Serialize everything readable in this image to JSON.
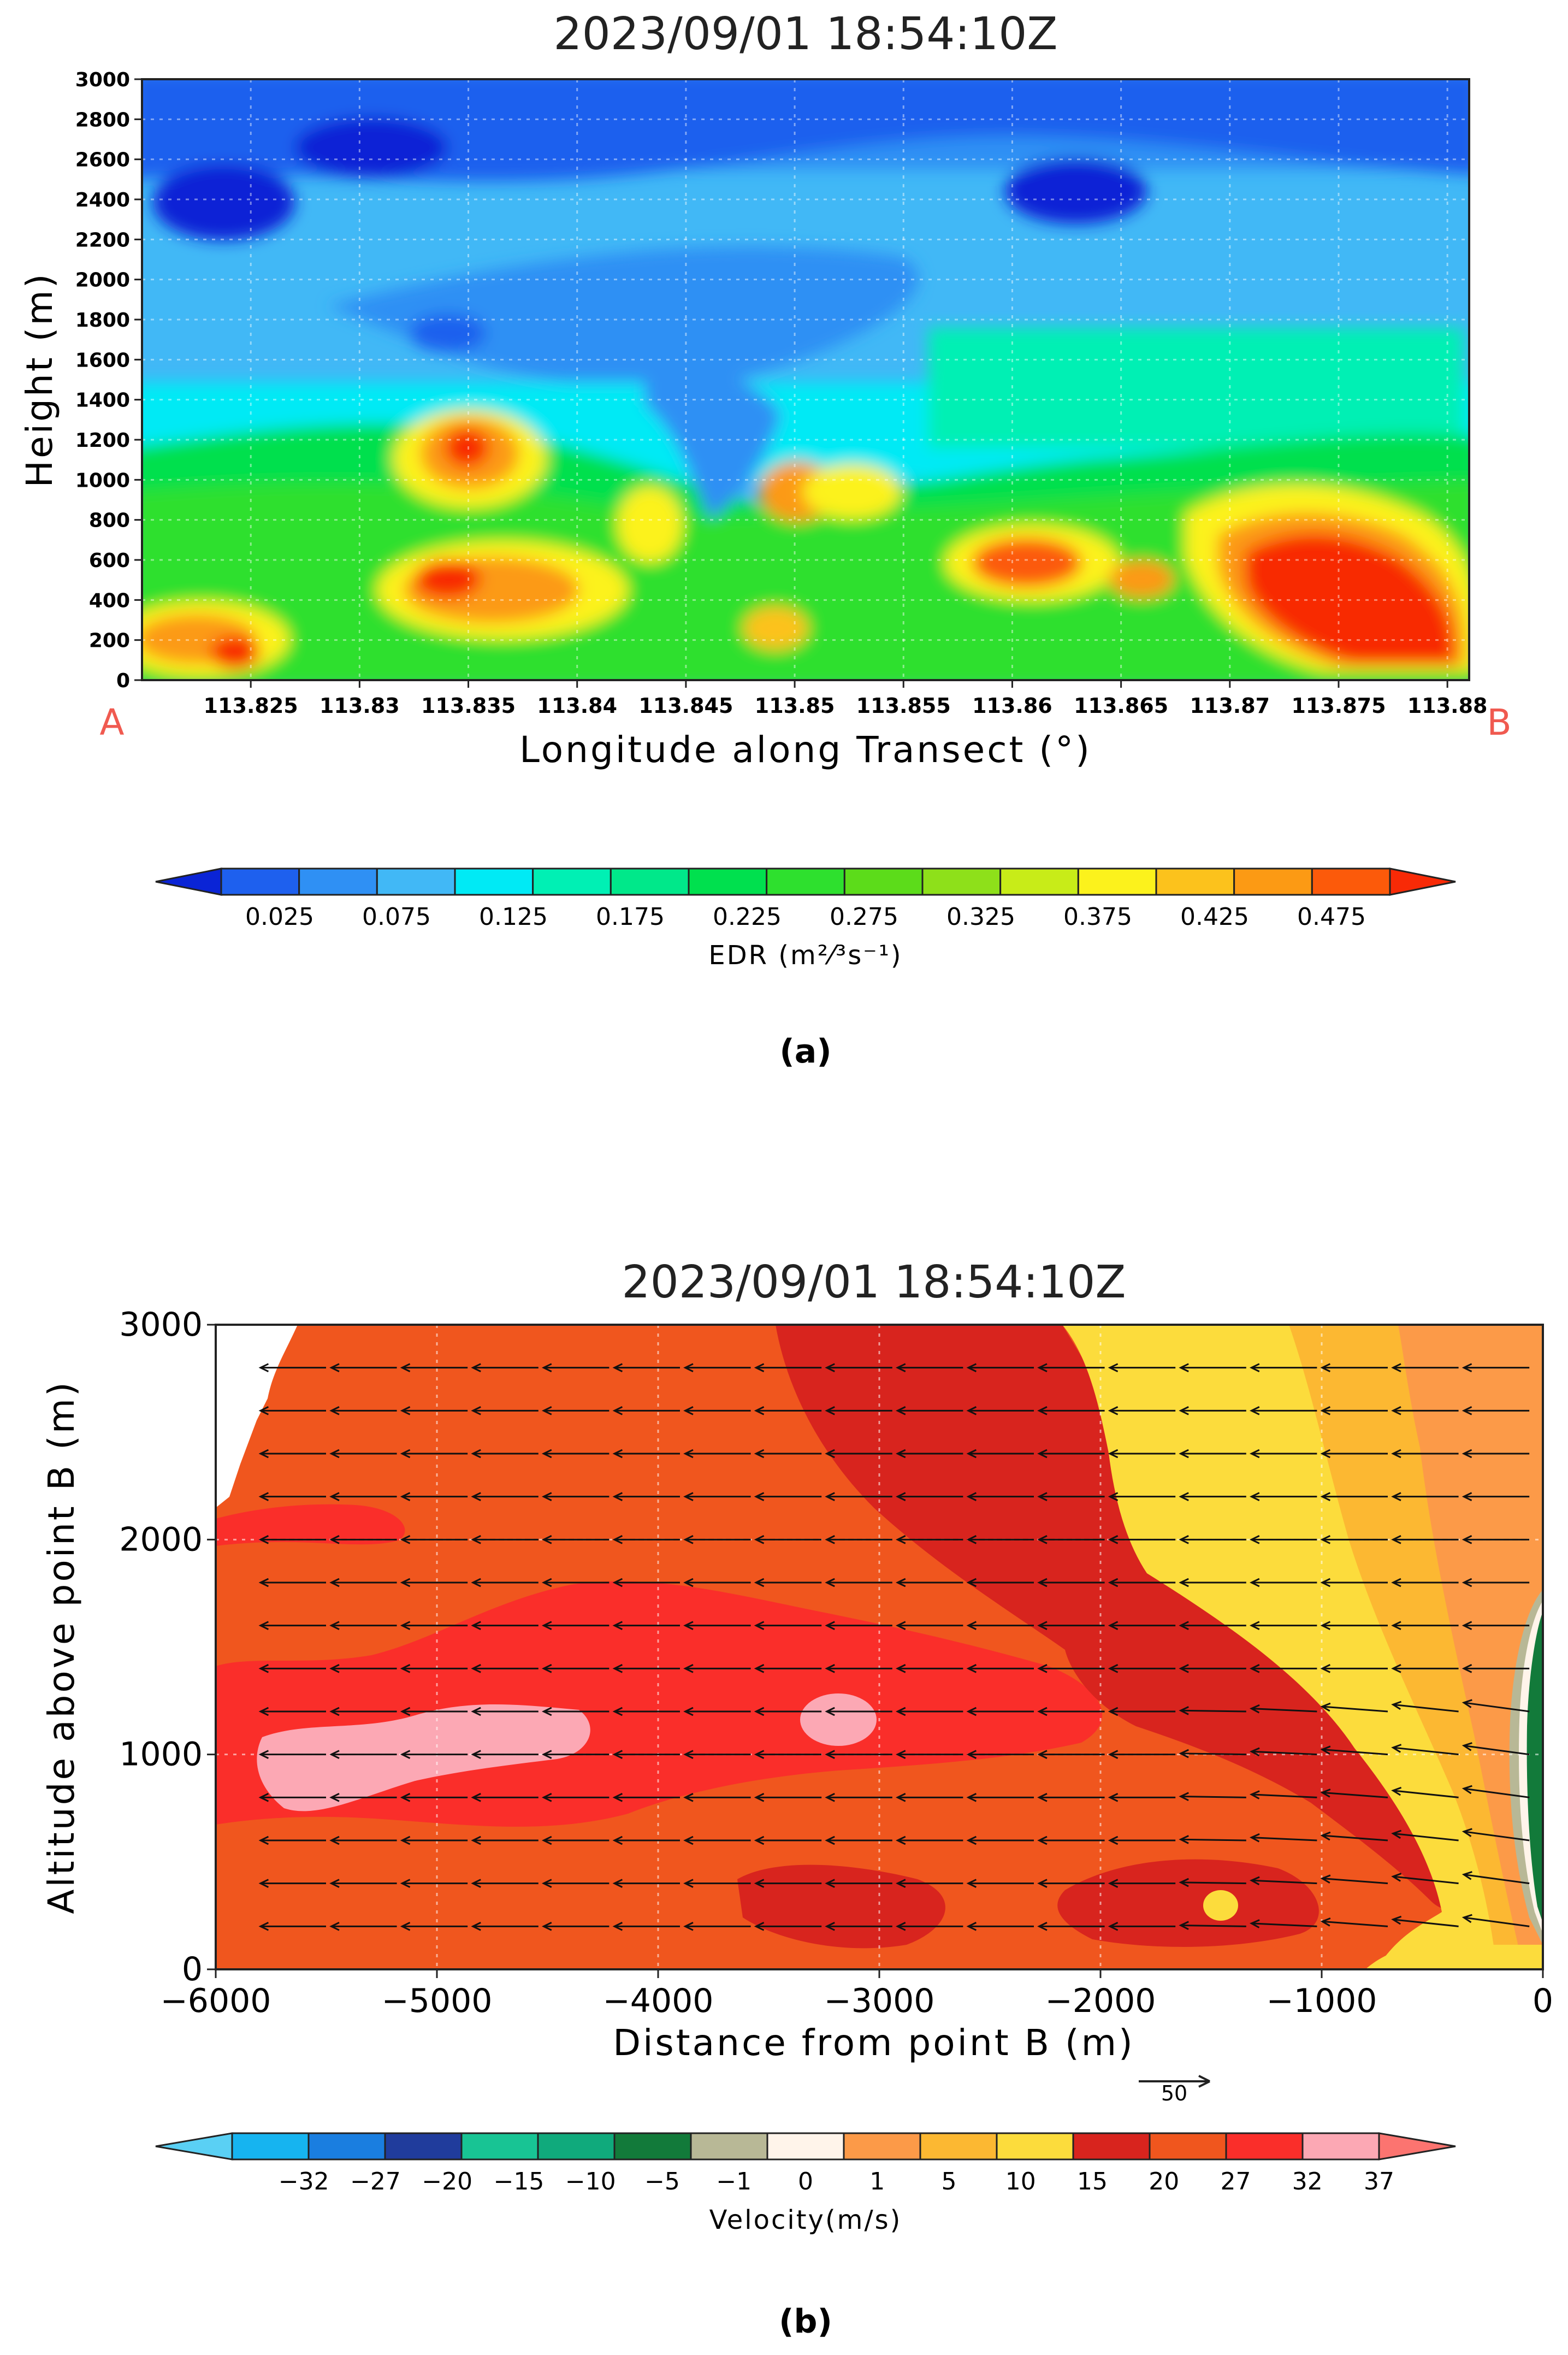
{
  "panel_a": {
    "caption": "(a)",
    "endpoint_left": "A",
    "endpoint_right": "B",
    "colorbar": {
      "label": "EDR (m²⁄³s⁻¹)",
      "tick_labels": [
        "0.025",
        "0.075",
        "0.125",
        "0.175",
        "0.225",
        "0.275",
        "0.325",
        "0.375",
        "0.425",
        "0.475"
      ],
      "colors": [
        "#0a24d6",
        "#1e60ee",
        "#2f90f4",
        "#41b8f6",
        "#00eaf5",
        "#00f0b4",
        "#00e88a",
        "#00e04e",
        "#2ee02e",
        "#5cdc1a",
        "#8ee01a",
        "#c8ec18",
        "#fcf21c",
        "#fcc21c",
        "#fc9a14",
        "#fc5a0a",
        "#f82a06"
      ]
    }
  },
  "panel_b": {
    "caption": "(b)",
    "wind_reference_label": "50",
    "colorbar": {
      "label": "Velocity(m/s)",
      "tick_labels": [
        "−32",
        "−27",
        "−20",
        "−15",
        "−10",
        "−5",
        "−1",
        "0",
        "1",
        "5",
        "10",
        "15",
        "20",
        "27",
        "32",
        "37"
      ],
      "colors": [
        "#5ad0f4",
        "#16b4f0",
        "#1a7ee0",
        "#203c9c",
        "#18c494",
        "#10aa7c",
        "#127a3a",
        "#b8b896",
        "#fff4ea",
        "#fc9a48",
        "#fcb832",
        "#fcdc3c",
        "#d8241e",
        "#f0561e",
        "#fa2e2a",
        "#fca8b4",
        "#fc7470"
      ]
    }
  },
  "chart_data": [
    {
      "type": "heatmap",
      "title": "2023/09/01  18:54:10Z",
      "xlabel": "Longitude along Transect (°)",
      "ylabel": "Height (m)",
      "xlim": [
        113.82,
        113.881
      ],
      "ylim": [
        0,
        3000
      ],
      "x_ticks": [
        "113.825",
        "113.83",
        "113.835",
        "113.84",
        "113.845",
        "113.85",
        "113.855",
        "113.86",
        "113.865",
        "113.87",
        "113.875",
        "113.88"
      ],
      "y_ticks": [
        "0",
        "200",
        "400",
        "600",
        "800",
        "1000",
        "1200",
        "1400",
        "1600",
        "1800",
        "2000",
        "2200",
        "2400",
        "2600",
        "2800",
        "3000"
      ],
      "colorbar_label": "EDR (m²⁄³s⁻¹)",
      "levels": [
        0.025,
        0.075,
        0.125,
        0.175,
        0.225,
        0.275,
        0.325,
        0.375,
        0.425,
        0.475
      ],
      "grid": true,
      "features": [
        {
          "desc": "max core",
          "x": 113.8355,
          "y": 1150,
          "value": 0.5
        },
        {
          "desc": "high core",
          "x": 113.8365,
          "y": 450,
          "value": 0.45
        },
        {
          "desc": "high core",
          "x": 113.8235,
          "y": 200,
          "value": 0.44
        },
        {
          "desc": "high core",
          "x": 113.8615,
          "y": 550,
          "value": 0.42
        },
        {
          "desc": "high core",
          "x": 113.874,
          "y": 450,
          "value": 0.49
        },
        {
          "desc": "high core",
          "x": 113.8785,
          "y": 300,
          "value": 0.46
        },
        {
          "desc": "mid core",
          "x": 113.843,
          "y": 650,
          "value": 0.37
        },
        {
          "desc": "mid core",
          "x": 113.8505,
          "y": 950,
          "value": 0.4
        },
        {
          "desc": "mid core",
          "x": 113.8505,
          "y": 280,
          "value": 0.38
        },
        {
          "desc": "mid core",
          "x": 113.8535,
          "y": 900,
          "value": 0.36
        },
        {
          "desc": "low core",
          "x": 113.8245,
          "y": 2420,
          "value": 0.04
        },
        {
          "desc": "low core",
          "x": 113.8295,
          "y": 2700,
          "value": 0.05
        },
        {
          "desc": "low core",
          "x": 113.8635,
          "y": 2450,
          "value": 0.03
        },
        {
          "desc": "low core",
          "x": 113.833,
          "y": 1700,
          "value": 0.09
        },
        {
          "desc": "low core",
          "x": 113.8465,
          "y": 1150,
          "value": 0.1
        }
      ]
    },
    {
      "type": "heatmap",
      "title": "2023/09/01  18:54:10Z",
      "xlabel": "Distance from point B (m)",
      "ylabel": "Altitude above point B (m)",
      "xlim": [
        -6000,
        0
      ],
      "ylim": [
        0,
        3000
      ],
      "x_ticks": [
        "−6000",
        "−5000",
        "−4000",
        "−3000",
        "−2000",
        "−1000",
        "0"
      ],
      "y_ticks": [
        "0",
        "1000",
        "2000",
        "3000"
      ],
      "colorbar_label": "Velocity(m/s)",
      "levels": [
        -32,
        -27,
        -20,
        -15,
        -10,
        -5,
        -1,
        0,
        1,
        5,
        10,
        15,
        20,
        27,
        32,
        37
      ],
      "grid": true,
      "wind_vectors": "leftward, ~30 m/s, slight downward tilt near x>-1500",
      "wind_reference": 50
    }
  ]
}
